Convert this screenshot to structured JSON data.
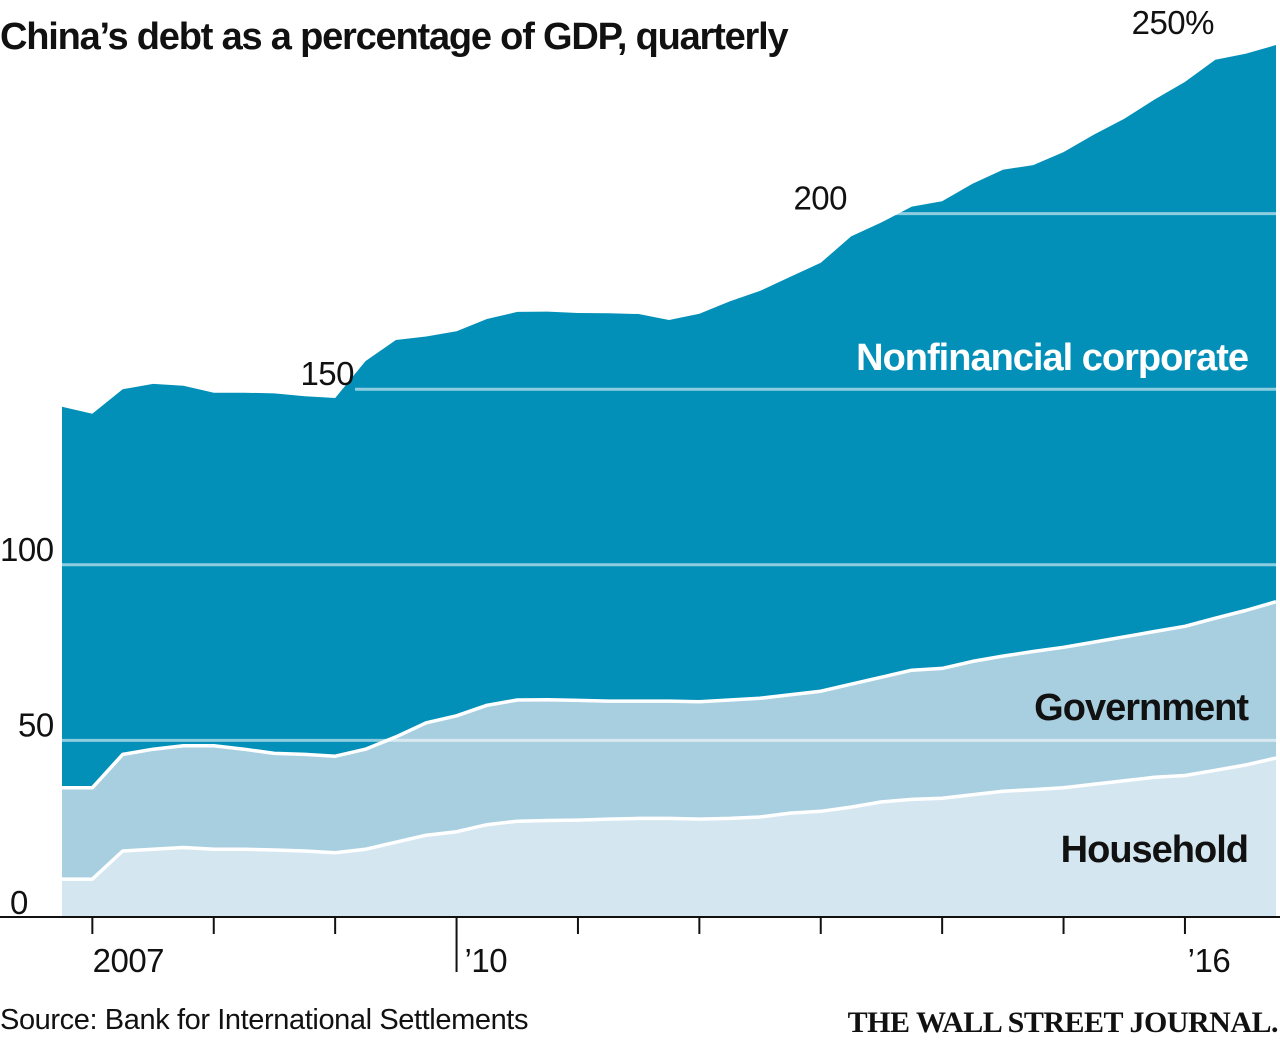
{
  "title": "China’s debt as a percentage of GDP, quarterly",
  "source": "Source: Bank for International Settlements",
  "publisher": "THE WALL STREET JOURNAL.",
  "colors": {
    "nonfinancial_corporate": "#0390b8",
    "government": "#a8cfe0",
    "household": "#d4e6f0",
    "boundary_line": "#ffffff",
    "gridline": "#ffffff",
    "text": "#111111"
  },
  "chart_data": {
    "type": "area",
    "stacked": true,
    "title": "China’s debt as a percentage of GDP, quarterly",
    "xlabel": "",
    "ylabel": "",
    "ylim": [
      0,
      250
    ],
    "grid": true,
    "y_ticks": [
      {
        "value": 0,
        "label": "0"
      },
      {
        "value": 50,
        "label": "50"
      },
      {
        "value": 100,
        "label": "100"
      },
      {
        "value": 150,
        "label": "150"
      },
      {
        "value": 200,
        "label": "200"
      },
      {
        "value": 250,
        "label": "250%"
      }
    ],
    "x_tick_labels": [
      {
        "label": "2007",
        "x": 2007.0
      },
      {
        "label": "’10",
        "x": 2010.0
      },
      {
        "label": "’16",
        "x": 2016.0
      }
    ],
    "x_tick_marks": [
      2007.0,
      2008.0,
      2009.0,
      2010.0,
      2011.0,
      2012.0,
      2013.0,
      2014.0,
      2015.0,
      2016.0
    ],
    "x": [
      2006.75,
      2007.0,
      2007.25,
      2007.5,
      2007.75,
      2008.0,
      2008.25,
      2008.5,
      2008.75,
      2009.0,
      2009.25,
      2009.5,
      2009.75,
      2010.0,
      2010.25,
      2010.5,
      2010.75,
      2011.0,
      2011.25,
      2011.5,
      2011.75,
      2012.0,
      2012.25,
      2012.5,
      2012.75,
      2013.0,
      2013.25,
      2013.5,
      2013.75,
      2014.0,
      2014.25,
      2014.5,
      2014.75,
      2015.0,
      2015.25,
      2015.5,
      2015.75,
      2016.0,
      2016.25,
      2016.5,
      2016.75
    ],
    "series": [
      {
        "name": "Household",
        "values": [
          10.5,
          10.5,
          18.5,
          19,
          19.5,
          19,
          19,
          18.8,
          18.5,
          18,
          19,
          21,
          23,
          24,
          26,
          27,
          27.2,
          27.3,
          27.6,
          27.8,
          27.8,
          27.6,
          27.8,
          28.2,
          29.3,
          29.8,
          31,
          32.5,
          33.2,
          33.5,
          34.5,
          35.5,
          36,
          36.5,
          37.5,
          38.5,
          39.5,
          40,
          41.5,
          43,
          45
        ]
      },
      {
        "name": "Government",
        "values": [
          26,
          26,
          27.5,
          28.5,
          29,
          29.5,
          28.5,
          27.5,
          27.5,
          27.5,
          28.5,
          30,
          32,
          33,
          34,
          34.5,
          34.4,
          34.1,
          33.6,
          33.4,
          33.4,
          33.4,
          33.7,
          33.8,
          33.7,
          34.2,
          35,
          35.5,
          36.8,
          37,
          38,
          38.5,
          39.3,
          40,
          40.5,
          41,
          41.5,
          42.5,
          43.3,
          44,
          44.5
        ]
      },
      {
        "name": "Nonfinancial corporate",
        "values": [
          108.5,
          106.5,
          104,
          104,
          102.5,
          100.5,
          101.5,
          102.5,
          102,
          102,
          110.5,
          113,
          110,
          109.5,
          110,
          110.5,
          110.5,
          110.3,
          110.4,
          110.2,
          108.5,
          110.5,
          113.5,
          116,
          119,
          122,
          127.5,
          129.5,
          132,
          133,
          136,
          138.5,
          138.5,
          141,
          144.5,
          147.5,
          151.5,
          155,
          159,
          158.5,
          158.5
        ]
      }
    ],
    "series_labels": {
      "Nonfinancial corporate": "Nonfinancial corporate",
      "Government": "Government",
      "Household": "Household"
    }
  }
}
